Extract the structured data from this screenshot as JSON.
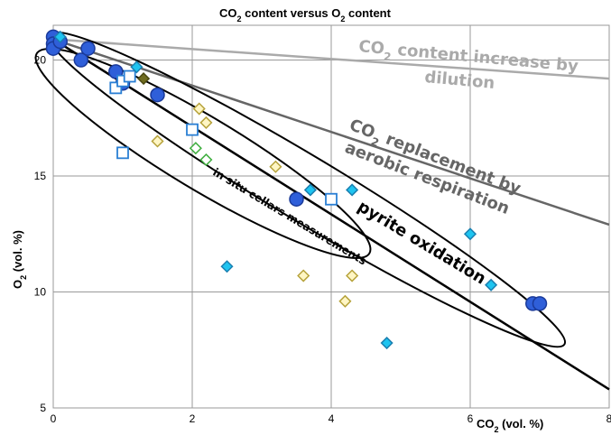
{
  "chart_data": {
    "type": "scatter",
    "title_parts": {
      "a": "CO",
      "sub_a": "2",
      "b": " content versus O",
      "sub_b": "2",
      "c": " content"
    },
    "xlabel_parts": {
      "main": "CO",
      "sub": "2",
      "rest": " (vol. %)"
    },
    "ylabel_parts": {
      "main": "O",
      "sub": "2",
      "rest": " (vol. %)"
    },
    "xlim": [
      0,
      8
    ],
    "ylim": [
      5,
      21.5
    ],
    "xticks": [
      "0",
      "2",
      "4",
      "6",
      "8"
    ],
    "yticks": [
      "5",
      "10",
      "15",
      "20"
    ],
    "xtick_values": [
      0,
      2,
      4,
      6,
      8
    ],
    "ytick_values": [
      5,
      10,
      15,
      20
    ],
    "grid": true,
    "colors": {
      "blue_circle": "#2f5fd9",
      "blue_edge": "#1a3a9a",
      "open_square": "#2a7fd4",
      "cyan_diamond": "#1ec4f0",
      "yellow_diamond": "#f7e68a",
      "green_diamond": "#6dd46d",
      "olive_diamond": "#6f6b1f",
      "dilution_line": "#aaaaaa",
      "respiration_line": "#666666",
      "pyrite_line": "#000000"
    },
    "lines": [
      {
        "name": "CO2 content increase by dilution",
        "x": [
          0,
          8
        ],
        "y": [
          20.9,
          19.2
        ]
      },
      {
        "name": "CO2 replacement by aerobic respiration",
        "x": [
          0,
          8
        ],
        "y": [
          20.9,
          12.9
        ]
      },
      {
        "name": "pyrite oxidation",
        "x": [
          0,
          8
        ],
        "y": [
          20.9,
          5.8
        ]
      }
    ],
    "series": [
      {
        "marker": "blue_circle",
        "points": [
          [
            0,
            21
          ],
          [
            0,
            20.7
          ],
          [
            0,
            20.5
          ],
          [
            0.1,
            20.8
          ],
          [
            0.4,
            20
          ],
          [
            0.5,
            20.5
          ],
          [
            0.9,
            19.5
          ],
          [
            1.0,
            19.0
          ],
          [
            1.5,
            18.5
          ],
          [
            3.5,
            14
          ],
          [
            6.9,
            9.5
          ],
          [
            7.0,
            9.5
          ]
        ]
      },
      {
        "marker": "open_square",
        "points": [
          [
            0.9,
            18.8
          ],
          [
            1.0,
            19.1
          ],
          [
            1.1,
            19.3
          ],
          [
            1.0,
            16.0
          ],
          [
            2.0,
            17.0
          ],
          [
            4.0,
            14.0
          ]
        ]
      },
      {
        "marker": "cyan_diamond",
        "points": [
          [
            0.1,
            21.0
          ],
          [
            1.2,
            19.7
          ],
          [
            2.5,
            11.1
          ],
          [
            3.7,
            14.4
          ],
          [
            4.3,
            14.4
          ],
          [
            4.8,
            7.8
          ],
          [
            6.0,
            12.5
          ],
          [
            6.3,
            10.3
          ]
        ]
      },
      {
        "marker": "yellow_diamond",
        "points": [
          [
            1.5,
            16.5
          ],
          [
            2.1,
            17.9
          ],
          [
            2.2,
            17.3
          ],
          [
            3.2,
            15.4
          ],
          [
            3.6,
            10.7
          ],
          [
            4.2,
            9.6
          ],
          [
            4.3,
            10.7
          ]
        ]
      },
      {
        "marker": "green_diamond",
        "points": [
          [
            2.05,
            16.2
          ],
          [
            2.2,
            15.7
          ]
        ]
      },
      {
        "marker": "olive_diamond",
        "points": [
          [
            1.3,
            19.2
          ]
        ]
      }
    ],
    "annotations": {
      "dilution_line1_a": "CO",
      "dilution_line1_sub": "2",
      "dilution_line1_b": " content increase by",
      "dilution_line2": "dilution",
      "respiration_line1_a": "CO",
      "respiration_line1_sub": "2",
      "respiration_line1_b": " replacement by",
      "respiration_line2": "aerobic respiration",
      "pyrite": "pyrite oxidation",
      "insitu": "in situ cellars measurements"
    }
  }
}
